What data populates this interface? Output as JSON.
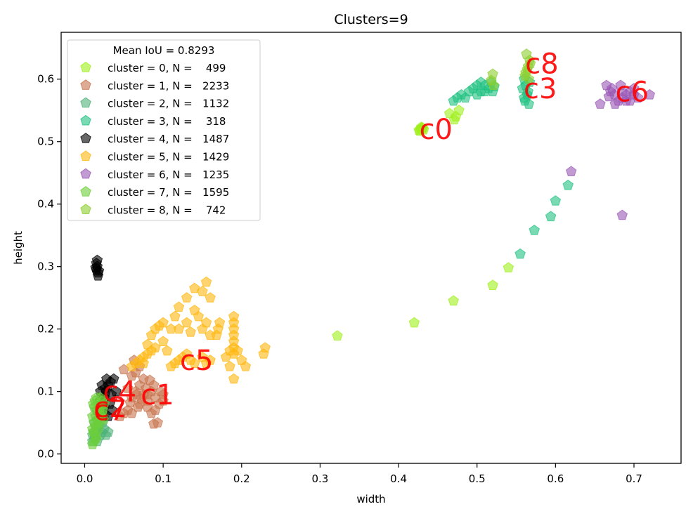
{
  "chart_data": {
    "type": "scatter",
    "title": "Clusters=9",
    "xlabel": "width",
    "ylabel": "height",
    "xlim": [
      -0.03,
      0.76
    ],
    "ylim": [
      -0.015,
      0.675
    ],
    "xticks": [
      0.0,
      0.1,
      0.2,
      0.3,
      0.4,
      0.5,
      0.6,
      0.7
    ],
    "yticks": [
      0.0,
      0.1,
      0.2,
      0.3,
      0.4,
      0.5,
      0.6
    ],
    "xtick_labels": [
      "0.0",
      "0.1",
      "0.2",
      "0.3",
      "0.4",
      "0.5",
      "0.6",
      "0.7"
    ],
    "ytick_labels": [
      "0.0",
      "0.1",
      "0.2",
      "0.3",
      "0.4",
      "0.5",
      "0.6"
    ],
    "grid": false,
    "legend": {
      "placement": "upper-left",
      "title": "Mean IoU = 0.8293",
      "entries": [
        "cluster = 0, N =    499",
        "cluster = 1, N =   2233",
        "cluster = 2, N =   1132",
        "cluster = 3, N =    318",
        "cluster = 4, N =   1487",
        "cluster = 5, N =   1429",
        "cluster = 6, N =   1235",
        "cluster = 7, N =   1595",
        "cluster = 8, N =    742"
      ]
    },
    "marker": "pentagon",
    "series": [
      {
        "name": "cluster = 0, N =    499",
        "color": "#9ef01a",
        "centroid_label": "c0",
        "centroid": [
          0.43,
          0.52
        ],
        "points": [
          [
            0.428,
            0.52
          ],
          [
            0.43,
            0.522
          ],
          [
            0.426,
            0.518
          ],
          [
            0.432,
            0.519
          ],
          [
            0.429,
            0.523
          ],
          [
            0.465,
            0.545
          ],
          [
            0.473,
            0.54
          ],
          [
            0.477,
            0.55
          ],
          [
            0.471,
            0.535
          ],
          [
            0.42,
            0.21
          ],
          [
            0.47,
            0.245
          ],
          [
            0.52,
            0.27
          ],
          [
            0.54,
            0.298
          ],
          [
            0.322,
            0.189
          ],
          [
            0.431,
            0.521
          ],
          [
            0.427,
            0.517
          ]
        ]
      },
      {
        "name": "cluster = 1, N =   2233",
        "color": "#c8754e",
        "centroid_label": "c1",
        "centroid": [
          0.075,
          0.095
        ],
        "points": [
          [
            0.06,
            0.09
          ],
          [
            0.065,
            0.1
          ],
          [
            0.07,
            0.11
          ],
          [
            0.075,
            0.095
          ],
          [
            0.08,
            0.085
          ],
          [
            0.085,
            0.1
          ],
          [
            0.09,
            0.09
          ],
          [
            0.095,
            0.08
          ],
          [
            0.1,
            0.095
          ],
          [
            0.055,
            0.105
          ],
          [
            0.06,
            0.125
          ],
          [
            0.065,
            0.13
          ],
          [
            0.07,
            0.14
          ],
          [
            0.075,
            0.12
          ],
          [
            0.08,
            0.075
          ],
          [
            0.085,
            0.065
          ],
          [
            0.09,
            0.07
          ],
          [
            0.045,
            0.06
          ],
          [
            0.05,
            0.065
          ],
          [
            0.055,
            0.07
          ],
          [
            0.06,
            0.065
          ],
          [
            0.07,
            0.08
          ],
          [
            0.08,
            0.095
          ],
          [
            0.088,
            0.11
          ],
          [
            0.093,
            0.05
          ],
          [
            0.088,
            0.048
          ],
          [
            0.05,
            0.135
          ],
          [
            0.063,
            0.15
          ],
          [
            0.068,
            0.075
          ],
          [
            0.078,
            0.105
          ],
          [
            0.072,
            0.088
          ],
          [
            0.058,
            0.082
          ],
          [
            0.083,
            0.118
          ],
          [
            0.097,
            0.1
          ],
          [
            0.1,
            0.085
          ],
          [
            0.066,
            0.095
          ]
        ]
      },
      {
        "name": "cluster = 2, N =   1132",
        "color": "#4fb27a",
        "centroid_label": "c2",
        "centroid": [
          0.015,
          0.075
        ],
        "points": [
          [
            0.01,
            0.03
          ],
          [
            0.012,
            0.035
          ],
          [
            0.015,
            0.04
          ],
          [
            0.018,
            0.045
          ],
          [
            0.02,
            0.03
          ],
          [
            0.022,
            0.035
          ],
          [
            0.025,
            0.04
          ],
          [
            0.027,
            0.03
          ],
          [
            0.03,
            0.035
          ],
          [
            0.01,
            0.02
          ],
          [
            0.013,
            0.025
          ],
          [
            0.016,
            0.02
          ],
          [
            0.012,
            0.05
          ],
          [
            0.017,
            0.055
          ],
          [
            0.023,
            0.05
          ],
          [
            0.02,
            0.065
          ],
          [
            0.015,
            0.07
          ],
          [
            0.025,
            0.06
          ]
        ]
      },
      {
        "name": "cluster = 3, N =   318",
        "color": "#1fc281",
        "centroid_label": "c3",
        "centroid": [
          0.563,
          0.585
        ],
        "points": [
          [
            0.56,
            0.57
          ],
          [
            0.565,
            0.58
          ],
          [
            0.562,
            0.59
          ],
          [
            0.558,
            0.585
          ],
          [
            0.567,
            0.595
          ],
          [
            0.561,
            0.565
          ],
          [
            0.564,
            0.575
          ],
          [
            0.56,
            0.6
          ],
          [
            0.566,
            0.56
          ],
          [
            0.5,
            0.575
          ],
          [
            0.505,
            0.58
          ],
          [
            0.51,
            0.59
          ],
          [
            0.515,
            0.585
          ],
          [
            0.52,
            0.58
          ],
          [
            0.49,
            0.58
          ],
          [
            0.495,
            0.585
          ],
          [
            0.48,
            0.575
          ],
          [
            0.485,
            0.57
          ],
          [
            0.475,
            0.57
          ],
          [
            0.47,
            0.565
          ],
          [
            0.5,
            0.59
          ],
          [
            0.505,
            0.595
          ],
          [
            0.51,
            0.58
          ],
          [
            0.518,
            0.595
          ],
          [
            0.522,
            0.588
          ],
          [
            0.555,
            0.32
          ],
          [
            0.573,
            0.358
          ],
          [
            0.594,
            0.38
          ],
          [
            0.6,
            0.405
          ],
          [
            0.616,
            0.43
          ]
        ]
      },
      {
        "name": "cluster = 4, N =   1487",
        "color": "#000000",
        "centroid_label": "c4",
        "centroid": [
          0.027,
          0.1
        ],
        "points": [
          [
            0.015,
            0.295
          ],
          [
            0.016,
            0.3
          ],
          [
            0.017,
            0.29
          ],
          [
            0.015,
            0.305
          ],
          [
            0.014,
            0.298
          ],
          [
            0.018,
            0.293
          ],
          [
            0.016,
            0.31
          ],
          [
            0.017,
            0.285
          ],
          [
            0.02,
            0.1
          ],
          [
            0.022,
            0.11
          ],
          [
            0.025,
            0.09
          ],
          [
            0.027,
            0.1
          ],
          [
            0.03,
            0.11
          ],
          [
            0.032,
            0.08
          ],
          [
            0.035,
            0.07
          ],
          [
            0.03,
            0.06
          ],
          [
            0.025,
            0.075
          ],
          [
            0.02,
            0.085
          ],
          [
            0.023,
            0.065
          ],
          [
            0.028,
            0.12
          ],
          [
            0.033,
            0.115
          ],
          [
            0.037,
            0.12
          ],
          [
            0.04,
            0.1
          ],
          [
            0.034,
            0.095
          ],
          [
            0.026,
            0.105
          ]
        ]
      },
      {
        "name": "cluster = 5, N =   1429",
        "color": "#ffb70f",
        "centroid_label": "c5",
        "centroid": [
          0.125,
          0.15
        ],
        "points": [
          [
            0.075,
            0.155
          ],
          [
            0.08,
            0.16
          ],
          [
            0.085,
            0.165
          ],
          [
            0.09,
            0.17
          ],
          [
            0.07,
            0.15
          ],
          [
            0.075,
            0.145
          ],
          [
            0.08,
            0.175
          ],
          [
            0.085,
            0.19
          ],
          [
            0.09,
            0.2
          ],
          [
            0.095,
            0.205
          ],
          [
            0.1,
            0.21
          ],
          [
            0.1,
            0.18
          ],
          [
            0.11,
            0.2
          ],
          [
            0.115,
            0.22
          ],
          [
            0.12,
            0.235
          ],
          [
            0.13,
            0.25
          ],
          [
            0.14,
            0.265
          ],
          [
            0.15,
            0.26
          ],
          [
            0.155,
            0.275
          ],
          [
            0.16,
            0.25
          ],
          [
            0.14,
            0.23
          ],
          [
            0.145,
            0.22
          ],
          [
            0.15,
            0.2
          ],
          [
            0.155,
            0.21
          ],
          [
            0.16,
            0.19
          ],
          [
            0.13,
            0.21
          ],
          [
            0.135,
            0.195
          ],
          [
            0.12,
            0.2
          ],
          [
            0.12,
            0.15
          ],
          [
            0.125,
            0.155
          ],
          [
            0.13,
            0.16
          ],
          [
            0.135,
            0.15
          ],
          [
            0.14,
            0.145
          ],
          [
            0.15,
            0.155
          ],
          [
            0.155,
            0.145
          ],
          [
            0.16,
            0.15
          ],
          [
            0.11,
            0.14
          ],
          [
            0.115,
            0.145
          ],
          [
            0.19,
            0.16
          ],
          [
            0.19,
            0.17
          ],
          [
            0.19,
            0.18
          ],
          [
            0.19,
            0.19
          ],
          [
            0.19,
            0.2
          ],
          [
            0.19,
            0.21
          ],
          [
            0.19,
            0.22
          ],
          [
            0.185,
            0.165
          ],
          [
            0.195,
            0.165
          ],
          [
            0.18,
            0.155
          ],
          [
            0.2,
            0.15
          ],
          [
            0.205,
            0.14
          ],
          [
            0.185,
            0.14
          ],
          [
            0.19,
            0.12
          ],
          [
            0.23,
            0.17
          ],
          [
            0.228,
            0.16
          ],
          [
            0.17,
            0.2
          ],
          [
            0.172,
            0.21
          ],
          [
            0.168,
            0.19
          ],
          [
            0.06,
            0.14
          ],
          [
            0.065,
            0.145
          ],
          [
            0.105,
            0.165
          ]
        ]
      },
      {
        "name": "cluster = 6, N =   1235",
        "color": "#9b59b6",
        "centroid_label": "c6",
        "centroid": [
          0.68,
          0.58
        ],
        "points": [
          [
            0.665,
            0.59
          ],
          [
            0.67,
            0.58
          ],
          [
            0.675,
            0.575
          ],
          [
            0.68,
            0.565
          ],
          [
            0.685,
            0.57
          ],
          [
            0.69,
            0.575
          ],
          [
            0.695,
            0.58
          ],
          [
            0.7,
            0.575
          ],
          [
            0.705,
            0.57
          ],
          [
            0.69,
            0.565
          ],
          [
            0.672,
            0.585
          ],
          [
            0.676,
            0.56
          ],
          [
            0.685,
            0.58
          ],
          [
            0.695,
            0.565
          ],
          [
            0.72,
            0.575
          ],
          [
            0.657,
            0.56
          ],
          [
            0.668,
            0.572
          ],
          [
            0.683,
            0.59
          ],
          [
            0.7,
            0.585
          ],
          [
            0.685,
            0.382
          ],
          [
            0.62,
            0.452
          ]
        ]
      },
      {
        "name": "cluster = 7, N =   1595",
        "color": "#6ccf3a",
        "centroid_label": "c7",
        "centroid": [
          0.015,
          0.07
        ],
        "points": [
          [
            0.01,
            0.04
          ],
          [
            0.012,
            0.05
          ],
          [
            0.014,
            0.06
          ],
          [
            0.016,
            0.07
          ],
          [
            0.018,
            0.08
          ],
          [
            0.02,
            0.09
          ],
          [
            0.022,
            0.085
          ],
          [
            0.01,
            0.06
          ],
          [
            0.012,
            0.075
          ],
          [
            0.014,
            0.045
          ],
          [
            0.016,
            0.055
          ],
          [
            0.018,
            0.065
          ],
          [
            0.02,
            0.075
          ],
          [
            0.022,
            0.065
          ],
          [
            0.024,
            0.055
          ],
          [
            0.011,
            0.035
          ],
          [
            0.013,
            0.03
          ],
          [
            0.015,
            0.025
          ],
          [
            0.01,
            0.015
          ],
          [
            0.012,
            0.02
          ],
          [
            0.017,
            0.04
          ],
          [
            0.019,
            0.05
          ],
          [
            0.021,
            0.06
          ],
          [
            0.023,
            0.07
          ],
          [
            0.025,
            0.08
          ],
          [
            0.013,
            0.085
          ],
          [
            0.015,
            0.09
          ],
          [
            0.011,
            0.08
          ]
        ]
      },
      {
        "name": "cluster = 8, N =    742",
        "color": "#8ccf2e",
        "centroid_label": "c8",
        "centroid": [
          0.565,
          0.625
        ],
        "points": [
          [
            0.563,
            0.64
          ],
          [
            0.565,
            0.62
          ],
          [
            0.567,
            0.63
          ],
          [
            0.562,
            0.61
          ],
          [
            0.566,
            0.6
          ],
          [
            0.564,
            0.615
          ],
          [
            0.568,
            0.625
          ],
          [
            0.561,
            0.605
          ],
          [
            0.52,
            0.608
          ],
          [
            0.518,
            0.598
          ],
          [
            0.521,
            0.59
          ]
        ]
      }
    ]
  }
}
